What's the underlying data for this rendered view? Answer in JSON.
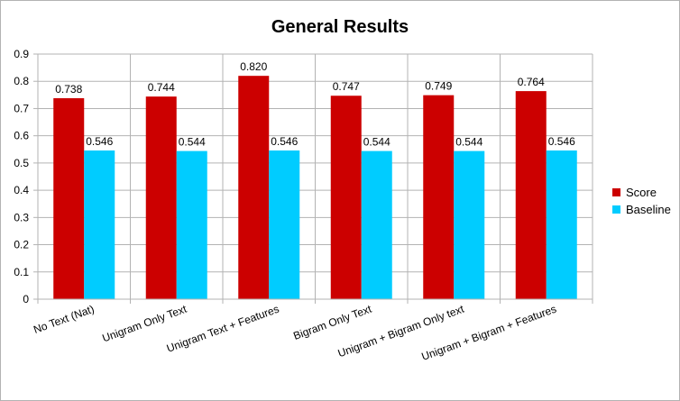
{
  "chart_data": {
    "type": "bar",
    "title": "General Results",
    "xlabel": "",
    "ylabel": "",
    "categories": [
      "No Text (Nat)",
      "Unigram Only Text",
      "Unigram Text + Features",
      "Bigram Only Text",
      "Unigram + Bigram Only text",
      "Unigram + Bigram + Features"
    ],
    "series": [
      {
        "name": "Score",
        "color": "#cc0000",
        "values": [
          0.738,
          0.744,
          0.82,
          0.747,
          0.749,
          0.764
        ],
        "labels": [
          "0.738",
          "0.744",
          "0.820",
          "0.747",
          "0.749",
          "0.764"
        ]
      },
      {
        "name": "Baseline",
        "color": "#00ccff",
        "values": [
          0.546,
          0.544,
          0.546,
          0.544,
          0.544,
          0.546
        ],
        "labels": [
          "0.546",
          "0.544",
          "0.546",
          "0.544",
          "0.544",
          "0.546"
        ]
      }
    ],
    "ylim": [
      0,
      0.9
    ],
    "yticks": [
      "0",
      "0.1",
      "0.2",
      "0.3",
      "0.4",
      "0.5",
      "0.6",
      "0.7",
      "0.8",
      "0.9"
    ],
    "grid": true,
    "legend_position": "right"
  }
}
